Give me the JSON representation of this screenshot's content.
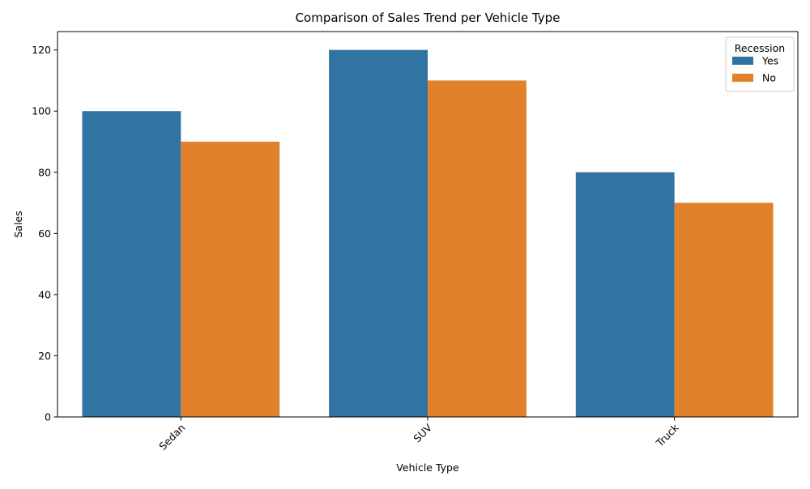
{
  "chart_data": {
    "type": "bar",
    "title": "Comparison of Sales Trend per Vehicle Type",
    "xlabel": "Vehicle Type",
    "ylabel": "Sales",
    "categories": [
      "Sedan",
      "SUV",
      "Truck"
    ],
    "series": [
      {
        "name": "Yes",
        "values": [
          100,
          120,
          80
        ],
        "color": "#3274a1"
      },
      {
        "name": "No",
        "values": [
          90,
          110,
          70
        ],
        "color": "#e1812c"
      }
    ],
    "ylim": [
      0,
      126
    ],
    "yticks": [
      0,
      20,
      40,
      60,
      80,
      100,
      120
    ],
    "grid": false,
    "legend": {
      "title": "Recession",
      "position": "top-right"
    }
  }
}
